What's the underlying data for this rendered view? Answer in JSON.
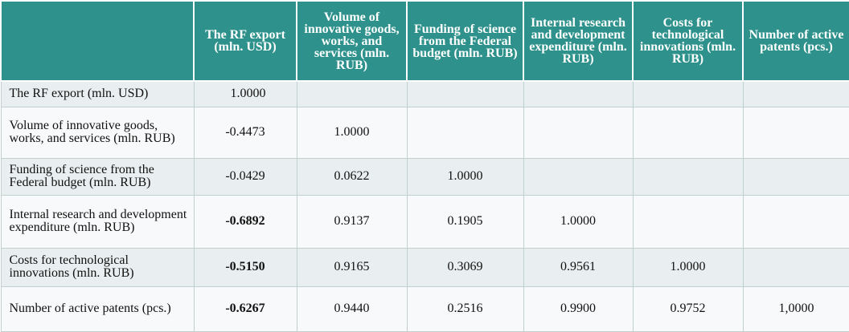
{
  "table": {
    "columns": [
      "",
      "The RF export (mln. USD)",
      "Volume of innovative goods, works, and services (mln. RUB)",
      "Funding of science from the Federal budget (mln. RUB)",
      "Internal research and development expenditure (mln. RUB)",
      "Costs for technological innovations (mln. RUB)",
      "Number of active patents (pcs.)"
    ],
    "rows": [
      {
        "label": "The RF export (mln. USD)",
        "values": [
          "1.0000",
          "",
          "",
          "",
          "",
          ""
        ]
      },
      {
        "label": "Volume of innovative goods, works, and services (mln. RUB)",
        "values": [
          "-0.4473",
          "1.0000",
          "",
          "",
          "",
          ""
        ]
      },
      {
        "label": "Funding of science from the Federal budget (mln. RUB)",
        "values": [
          "-0.0429",
          "0.0622",
          "1.0000",
          "",
          "",
          ""
        ]
      },
      {
        "label": "Internal research and development expenditure (mln. RUB)",
        "values": [
          "-0.6892",
          "0.9137",
          "0.1905",
          "1.0000",
          "",
          ""
        ]
      },
      {
        "label": "Costs for technological innovations (mln. RUB)",
        "values": [
          "-0.5150",
          "0.9165",
          "0.3069",
          "0.9561",
          "1.0000",
          ""
        ]
      },
      {
        "label": "Number of active patents (pcs.)",
        "values": [
          "-0.6267",
          "0.9440",
          "0.2516",
          "0.9900",
          "0.9752",
          "1,0000"
        ]
      }
    ]
  },
  "colors": {
    "header_bg": "#2e918b",
    "header_text": "#ffffff",
    "row_odd": "#e9eef0",
    "row_even": "#f7f9fa"
  }
}
